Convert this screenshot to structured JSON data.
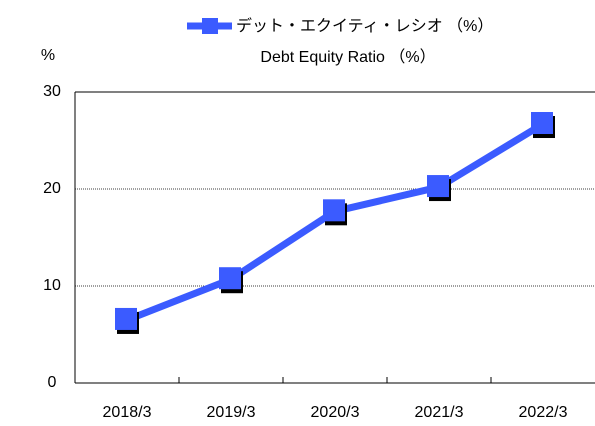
{
  "chart_data": {
    "type": "line",
    "subtitle": "Debt Equity Ratio （%）",
    "y_label": "%",
    "categories": [
      "2018/3",
      "2019/3",
      "2020/3",
      "2021/3",
      "2022/3"
    ],
    "series": [
      {
        "name": "デット・エクイティ・レシオ （%）",
        "color": "#3b5bff",
        "values": [
          6.5,
          10.7,
          17.7,
          20.2,
          26.7
        ]
      }
    ],
    "ylim": [
      0,
      30
    ],
    "yticks": [
      0,
      10,
      20,
      30
    ],
    "grid": true,
    "legend": "top"
  }
}
